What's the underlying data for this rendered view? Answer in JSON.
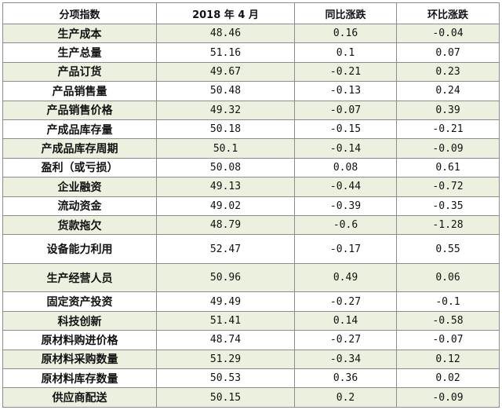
{
  "table": {
    "headers": [
      "分项指数",
      "2018 年 4 月",
      "同比涨跌",
      "环比涨跌"
    ],
    "rows": [
      [
        "生产成本",
        "48.46",
        "0.16",
        "-0.04"
      ],
      [
        "生产总量",
        "51.16",
        "0.1",
        "0.07"
      ],
      [
        "产品订货",
        "49.67",
        "-0.21",
        "0.23"
      ],
      [
        "产品销售量",
        "50.48",
        "-0.13",
        "0.24"
      ],
      [
        "产品销售价格",
        "49.32",
        "-0.07",
        "0.39"
      ],
      [
        "产成品库存量",
        "50.18",
        "-0.15",
        "-0.21"
      ],
      [
        "产成品库存周期",
        "50.1",
        "-0.14",
        "-0.09"
      ],
      [
        "盈利（或亏损）",
        "50.08",
        "0.08",
        "0.61"
      ],
      [
        "企业融资",
        "49.13",
        "-0.44",
        "-0.72"
      ],
      [
        "流动资金",
        "49.02",
        "-0.39",
        "-0.35"
      ],
      [
        "货款拖欠",
        "48.79",
        "-0.6",
        "-1.28"
      ],
      [
        "设备能力利用",
        "52.47",
        "-0.17",
        "0.55"
      ],
      [
        "生产经营人员",
        "50.96",
        "0.49",
        "0.06"
      ],
      [
        "固定资产投资",
        "49.49",
        "-0.27",
        "-0.1"
      ],
      [
        "科技创新",
        "51.41",
        "0.14",
        "-0.58"
      ],
      [
        "原材料购进价格",
        "48.74",
        "-0.27",
        "-0.07"
      ],
      [
        "原材料采购数量",
        "51.29",
        "-0.34",
        "0.12"
      ],
      [
        "原材料库存数量",
        "50.53",
        "0.36",
        "0.02"
      ],
      [
        "供应商配送",
        "50.15",
        "0.2",
        "-0.09"
      ]
    ]
  }
}
